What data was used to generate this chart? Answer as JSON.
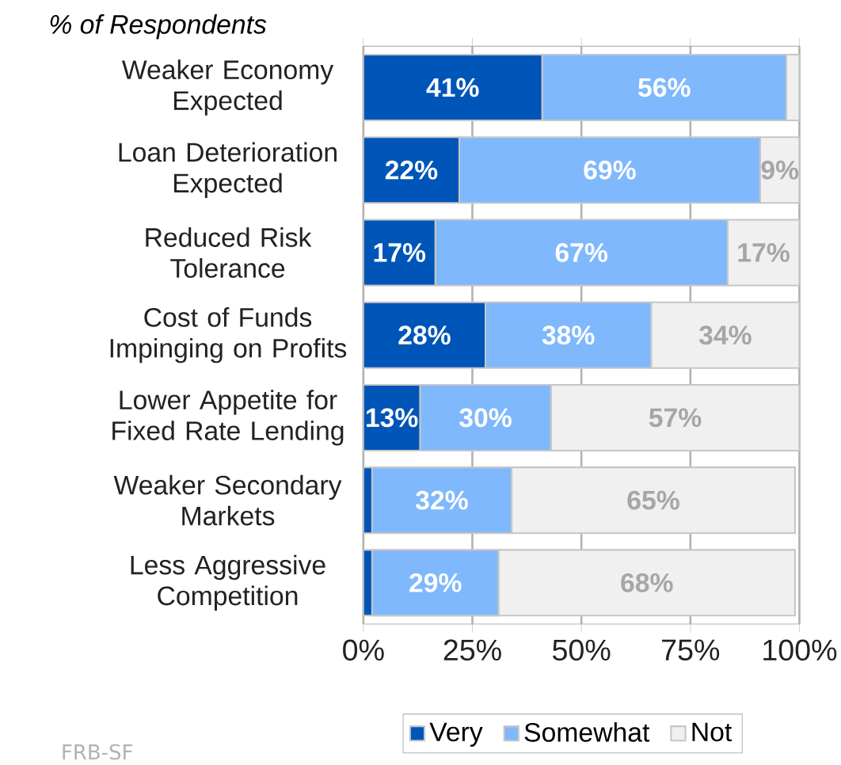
{
  "chart_data": {
    "type": "bar",
    "orientation": "horizontal",
    "stacked": true,
    "title": "% of Respondents",
    "categories": [
      "Weaker Economy Expected",
      "Loan Deterioration Expected",
      "Reduced Risk Tolerance",
      "Cost of Funds Impinging on Profits",
      "Lower Appetite for Fixed Rate Lending",
      "Weaker Secondary Markets",
      "Less Aggressive Competition"
    ],
    "series": [
      {
        "name": "Very",
        "color": "#0055b8",
        "values": [
          41,
          22,
          16.5,
          28,
          13,
          2,
          2
        ],
        "value_labels": [
          "41%",
          "22%",
          "17%",
          "28%",
          "13%",
          null,
          null
        ]
      },
      {
        "name": "Somewhat",
        "color": "#7fb8fc",
        "values": [
          56,
          69,
          67,
          38,
          30,
          32,
          29
        ],
        "value_labels": [
          "56%",
          "69%",
          "67%",
          "38%",
          "30%",
          "32%",
          "29%"
        ]
      },
      {
        "name": "Not",
        "color": "#f0f0f0",
        "values": [
          3,
          9,
          16.5,
          34,
          57,
          65,
          68
        ],
        "value_labels": [
          null,
          "9%",
          "17%",
          "34%",
          "57%",
          "65%",
          "68%"
        ]
      }
    ],
    "xlim": [
      0,
      100
    ],
    "xticks": [
      {
        "value": 0,
        "label": "0%"
      },
      {
        "value": 25,
        "label": "25%"
      },
      {
        "value": 50,
        "label": "50%"
      },
      {
        "value": 75,
        "label": "75%"
      },
      {
        "value": 100,
        "label": "100%"
      }
    ],
    "grid": "x",
    "legend": "bottom",
    "annotations": [
      "FRB-SF"
    ]
  }
}
